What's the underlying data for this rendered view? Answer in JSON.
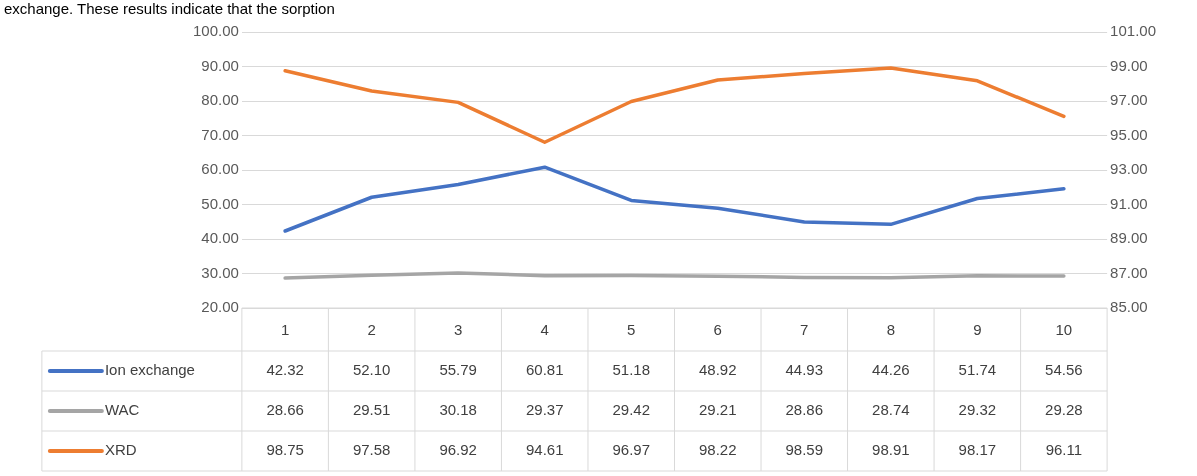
{
  "chart_data": {
    "type": "line",
    "annotations": [
      "exchange. These results indicate that the sorption"
    ],
    "categories": [
      "1",
      "2",
      "3",
      "4",
      "5",
      "6",
      "7",
      "8",
      "9",
      "10"
    ],
    "series": [
      {
        "name": "Ion exchange",
        "color": "#4472c4",
        "values": [
          42.32,
          52.1,
          55.79,
          60.81,
          51.18,
          48.92,
          44.93,
          44.26,
          51.74,
          54.56
        ],
        "value_labels": [
          "42.32",
          "52.10",
          "55.79",
          "60.81",
          "51.18",
          "48.92",
          "44.93",
          "44.26",
          "51.74",
          "54.56"
        ]
      },
      {
        "name": "WAC",
        "color": "#a5a5a5",
        "values": [
          28.66,
          29.51,
          30.18,
          29.37,
          29.42,
          29.21,
          28.86,
          28.74,
          29.32,
          29.28
        ],
        "value_labels": [
          "28.66",
          "29.51",
          "30.18",
          "29.37",
          "29.42",
          "29.21",
          "28.86",
          "28.74",
          "29.32",
          "29.28"
        ]
      },
      {
        "name": "XRD",
        "color": "#ed7d31",
        "axis": "y2",
        "values": [
          98.75,
          97.58,
          96.92,
          94.61,
          96.97,
          98.22,
          98.59,
          98.91,
          98.17,
          96.11
        ],
        "value_labels": [
          "98.75",
          "97.58",
          "96.92",
          "94.61",
          "96.97",
          "98.22",
          "98.59",
          "98.91",
          "98.17",
          "96.11"
        ]
      }
    ],
    "ylim": [
      20,
      100
    ],
    "yticks": [
      {
        "value": 20,
        "label": "20.00"
      },
      {
        "value": 30,
        "label": "30.00"
      },
      {
        "value": 40,
        "label": "40.00"
      },
      {
        "value": 50,
        "label": "50.00"
      },
      {
        "value": 60,
        "label": "60.00"
      },
      {
        "value": 70,
        "label": "70.00"
      },
      {
        "value": 80,
        "label": "80.00"
      },
      {
        "value": 90,
        "label": "90.00"
      },
      {
        "value": 100,
        "label": "100.00"
      }
    ],
    "y2lim": [
      85,
      101
    ],
    "y2ticks": [
      {
        "value": 85,
        "label": "85.00"
      },
      {
        "value": 87,
        "label": "87.00"
      },
      {
        "value": 89,
        "label": "89.00"
      },
      {
        "value": 91,
        "label": "91.00"
      },
      {
        "value": 93,
        "label": "93.00"
      },
      {
        "value": 95,
        "label": "95.00"
      },
      {
        "value": 97,
        "label": "97.00"
      },
      {
        "value": 99,
        "label": "99.00"
      },
      {
        "value": 101,
        "label": "101.00"
      }
    ],
    "grid": "y",
    "legend": "bottom left",
    "marker": "none",
    "line_style": "solid"
  }
}
